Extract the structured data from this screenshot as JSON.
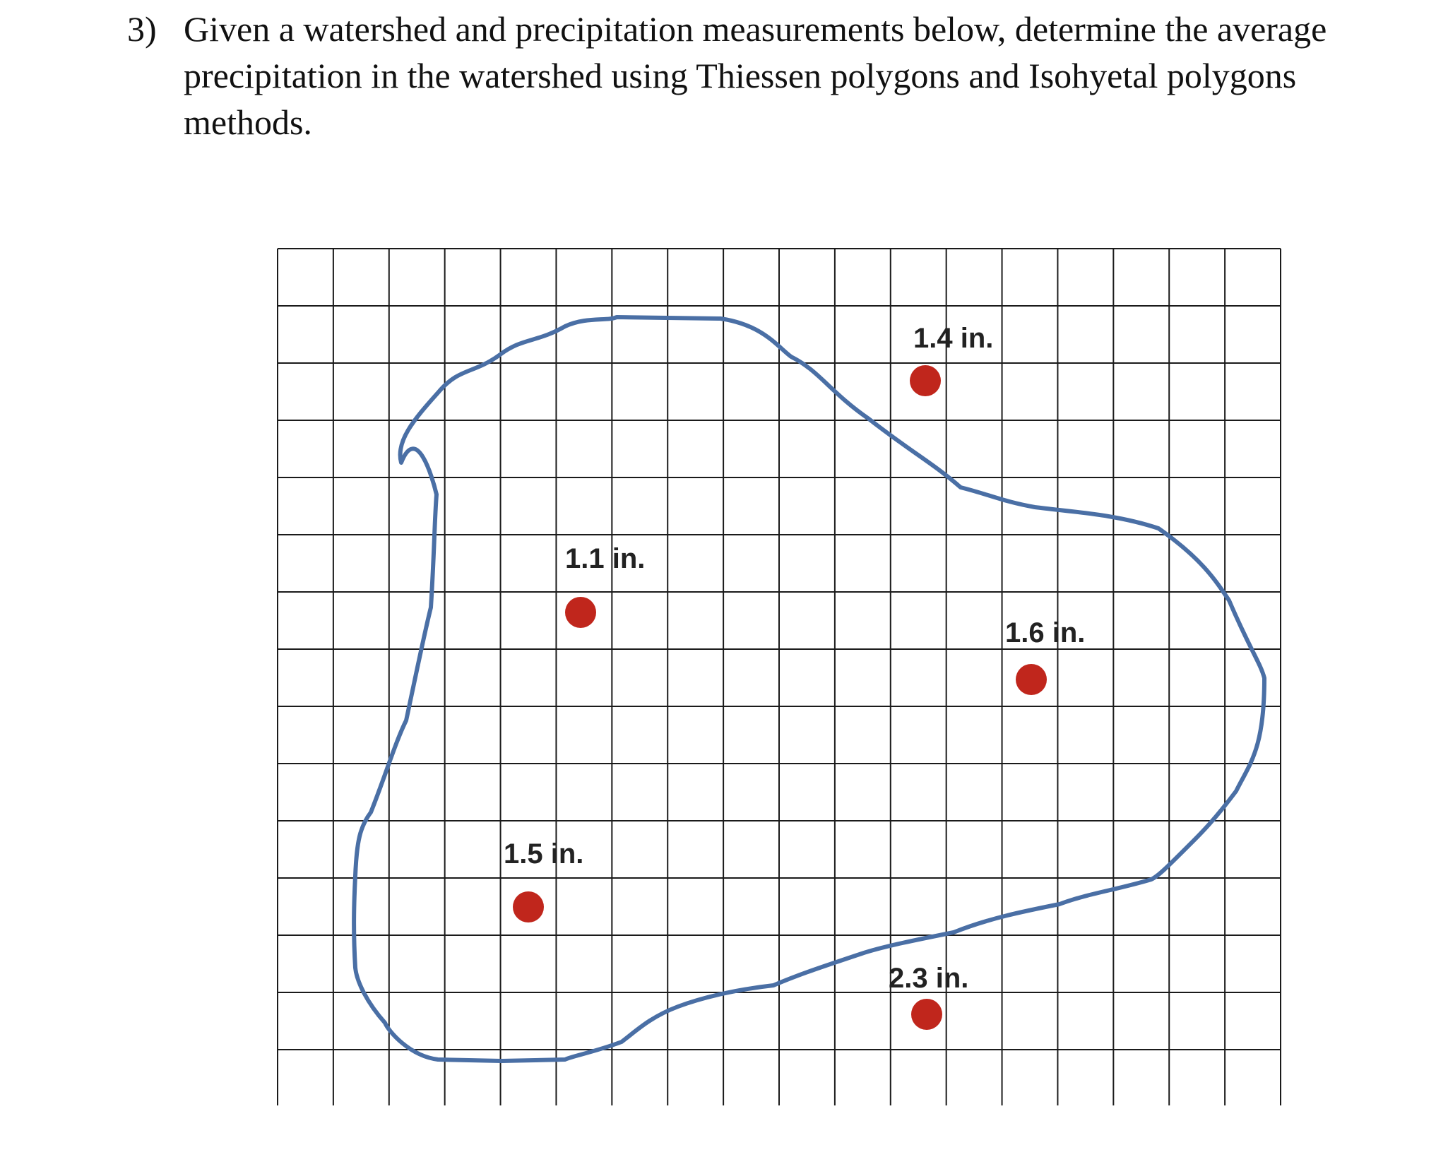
{
  "question": {
    "number": "3)",
    "text": "Given a watershed and precipitation measurements below, determine the average precipitation in the watershed using Thiessen polygons and Isohyetal polygons methods."
  },
  "figure": {
    "grid": {
      "columns": 18,
      "rows": 15,
      "line_color": "#1a1a1a"
    },
    "watershed_color": "#4a6fa5",
    "gauge_color": "#c0261c",
    "gauges": [
      {
        "label": "1.4 in.",
        "value_in": 1.4
      },
      {
        "label": "1.1 in.",
        "value_in": 1.1
      },
      {
        "label": "1.6 in.",
        "value_in": 1.6
      },
      {
        "label": "1.5 in.",
        "value_in": 1.5
      },
      {
        "label": "2.3 in.",
        "value_in": 2.3
      }
    ]
  }
}
